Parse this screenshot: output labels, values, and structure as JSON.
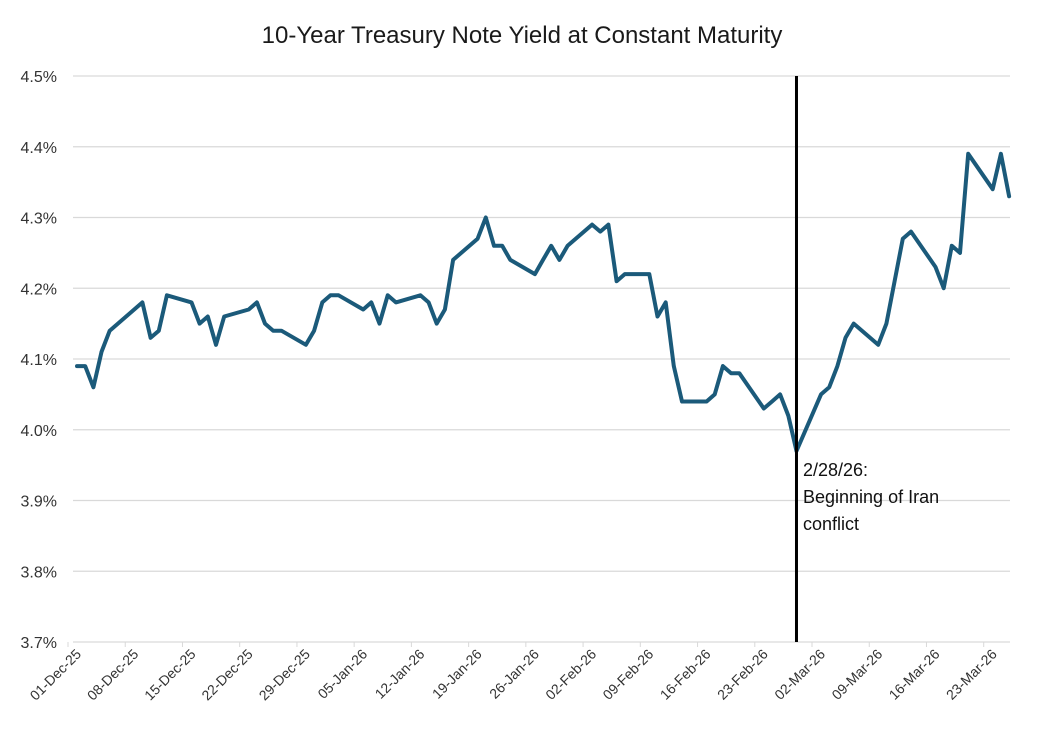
{
  "chart_data": {
    "type": "line",
    "title": "10-Year Treasury Note Yield at Constant Maturity",
    "xlabel": "",
    "ylabel": "",
    "ylim": [
      3.7,
      4.5
    ],
    "y_ticks": [
      "3.7%",
      "3.8%",
      "3.9%",
      "4.0%",
      "4.1%",
      "4.2%",
      "4.3%",
      "4.4%",
      "4.5%"
    ],
    "y_tick_values": [
      3.7,
      3.8,
      3.9,
      4.0,
      4.1,
      4.2,
      4.3,
      4.4,
      4.5
    ],
    "x_ticks": [
      "01-Dec-25",
      "08-Dec-25",
      "15-Dec-25",
      "22-Dec-25",
      "29-Dec-25",
      "05-Jan-26",
      "12-Jan-26",
      "19-Jan-26",
      "26-Jan-26",
      "02-Feb-26",
      "09-Feb-26",
      "16-Feb-26",
      "23-Feb-26",
      "02-Mar-26",
      "09-Mar-26",
      "16-Mar-26",
      "23-Mar-26"
    ],
    "x_tick_dates": [
      "2025-12-01",
      "2025-12-08",
      "2025-12-15",
      "2025-12-22",
      "2025-12-29",
      "2026-01-05",
      "2026-01-12",
      "2026-01-19",
      "2026-01-26",
      "2026-02-02",
      "2026-02-09",
      "2026-02-16",
      "2026-02-23",
      "2026-03-02",
      "2026-03-09",
      "2026-03-16",
      "2026-03-23"
    ],
    "grid": true,
    "line_color": "#1b5a7a",
    "series": [
      {
        "x": [
          "2025-12-01",
          "2025-12-02",
          "2025-12-03",
          "2025-12-04",
          "2025-12-05",
          "2025-12-08",
          "2025-12-09",
          "2025-12-10",
          "2025-12-11",
          "2025-12-12",
          "2025-12-15",
          "2025-12-16",
          "2025-12-17",
          "2025-12-18",
          "2025-12-19",
          "2025-12-22",
          "2025-12-23",
          "2025-12-24",
          "2025-12-25",
          "2025-12-26",
          "2025-12-29",
          "2025-12-30",
          "2025-12-31",
          "2026-01-01",
          "2026-01-02",
          "2026-01-05",
          "2026-01-06",
          "2026-01-07",
          "2026-01-08",
          "2026-01-09",
          "2026-01-12",
          "2026-01-13",
          "2026-01-14",
          "2026-01-15",
          "2026-01-16",
          "2026-01-19",
          "2026-01-20",
          "2026-01-21",
          "2026-01-22",
          "2026-01-23",
          "2026-01-26",
          "2026-01-27",
          "2026-01-28",
          "2026-01-29",
          "2026-01-30",
          "2026-02-02",
          "2026-02-03",
          "2026-02-04",
          "2026-02-05",
          "2026-02-06",
          "2026-02-09",
          "2026-02-10",
          "2026-02-11",
          "2026-02-12",
          "2026-02-13",
          "2026-02-16",
          "2026-02-17",
          "2026-02-18",
          "2026-02-19",
          "2026-02-20",
          "2026-02-23",
          "2026-02-24",
          "2026-02-25",
          "2026-02-26",
          "2026-02-27",
          "2026-03-02",
          "2026-03-03",
          "2026-03-04",
          "2026-03-05",
          "2026-03-06",
          "2026-03-09",
          "2026-03-10",
          "2026-03-11",
          "2026-03-12",
          "2026-03-13",
          "2026-03-16",
          "2026-03-17",
          "2026-03-18",
          "2026-03-19",
          "2026-03-20",
          "2026-03-23",
          "2026-03-24",
          "2026-03-25"
        ],
        "values": [
          4.09,
          4.09,
          4.06,
          4.11,
          4.14,
          4.17,
          4.18,
          4.13,
          4.14,
          4.19,
          4.18,
          4.15,
          4.16,
          4.12,
          4.16,
          4.17,
          4.18,
          4.15,
          4.14,
          4.14,
          4.12,
          4.14,
          4.18,
          4.19,
          4.19,
          4.17,
          4.18,
          4.15,
          4.19,
          4.18,
          4.19,
          4.18,
          4.15,
          4.17,
          4.24,
          4.27,
          4.3,
          4.26,
          4.26,
          4.24,
          4.22,
          4.24,
          4.26,
          4.24,
          4.26,
          4.29,
          4.28,
          4.29,
          4.21,
          4.22,
          4.22,
          4.16,
          4.18,
          4.09,
          4.04,
          4.04,
          4.05,
          4.09,
          4.08,
          4.08,
          4.03,
          4.04,
          4.05,
          4.02,
          3.97,
          4.05,
          4.06,
          4.09,
          4.13,
          4.15,
          4.12,
          4.15,
          4.21,
          4.27,
          4.28,
          4.23,
          4.2,
          4.26,
          4.25,
          4.39,
          4.34,
          4.39,
          4.33
        ]
      }
    ],
    "annotation": {
      "date": "2026-02-27",
      "lines": [
        "2/28/26:",
        "Beginning of Iran",
        "conflict"
      ]
    }
  }
}
